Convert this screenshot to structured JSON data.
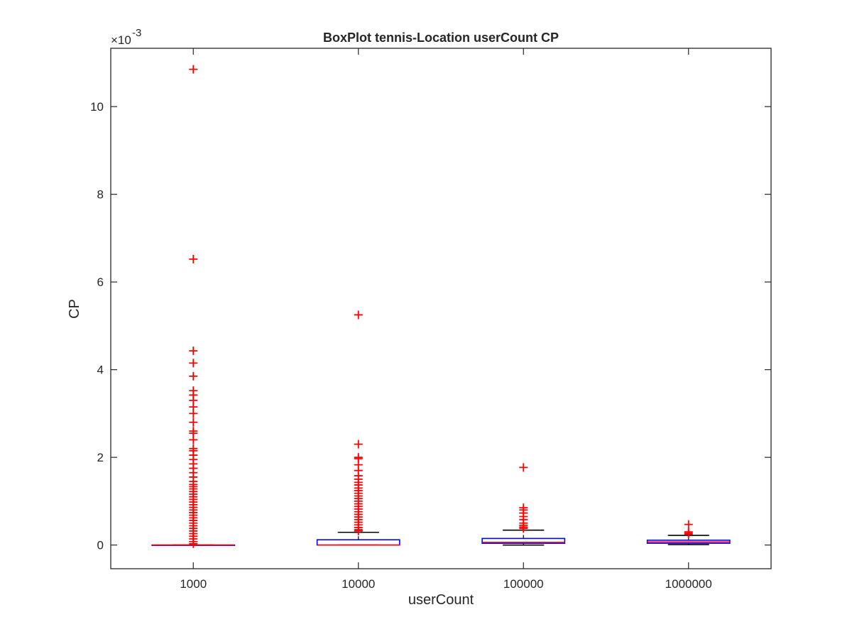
{
  "chart_data": {
    "type": "box",
    "title": "BoxPlot tennis-Location userCount CP",
    "xlabel": "userCount",
    "ylabel": "CP",
    "y_multiplier_base": "×10",
    "y_multiplier_exponent": "-3",
    "categories": [
      "1000",
      "10000",
      "100000",
      "1000000"
    ],
    "ylim": [
      -0.54,
      11.33
    ],
    "yticks": [
      0,
      2,
      4,
      6,
      8,
      10
    ],
    "ytick_labels": [
      "0",
      "2",
      "4",
      "6",
      "8",
      "10"
    ],
    "grid": false,
    "colors": {
      "box": "#0000ff",
      "median": "#ff0000",
      "whisker": "#000000",
      "outlier": "#ff0000",
      "axis": "#262626"
    },
    "boxes": [
      {
        "category": "1000",
        "q1": 0.0,
        "median": 0.0,
        "q3": 0.0,
        "whisker_low": 0.0,
        "whisker_high": 0.0,
        "outliers": [
          10.85,
          6.52,
          4.43,
          4.15,
          3.85,
          3.52,
          3.42,
          3.3,
          3.15,
          3.0,
          2.8,
          2.6,
          2.55,
          2.4,
          2.2,
          2.15,
          2.05,
          1.95,
          1.85,
          1.75,
          1.65,
          1.55,
          1.45,
          1.38,
          1.33,
          1.28,
          1.22,
          1.16,
          1.1,
          1.04,
          0.98,
          0.92,
          0.86,
          0.8,
          0.74,
          0.68,
          0.62,
          0.56,
          0.5,
          0.44,
          0.38,
          0.32,
          0.26,
          0.2,
          0.14,
          0.08,
          0.03
        ]
      },
      {
        "category": "10000",
        "q1": 0.0,
        "median": 0.0,
        "q3": 0.12,
        "whisker_low": 0.0,
        "whisker_high": 0.29,
        "outliers": [
          5.25,
          2.3,
          2.0,
          1.97,
          1.83,
          1.7,
          1.58,
          1.5,
          1.43,
          1.37,
          1.3,
          1.24,
          1.18,
          1.12,
          1.06,
          1.0,
          0.94,
          0.88,
          0.82,
          0.76,
          0.7,
          0.64,
          0.58,
          0.52,
          0.46,
          0.4,
          0.35,
          0.32
        ]
      },
      {
        "category": "100000",
        "q1": 0.04,
        "median": 0.06,
        "q3": 0.15,
        "whisker_low": 0.0,
        "whisker_high": 0.34,
        "outliers": [
          1.77,
          0.85,
          0.8,
          0.73,
          0.65,
          0.58,
          0.5,
          0.45,
          0.41,
          0.38
        ]
      },
      {
        "category": "1000000",
        "q1": 0.04,
        "median": 0.07,
        "q3": 0.11,
        "whisker_low": 0.01,
        "whisker_high": 0.22,
        "outliers": [
          0.47,
          0.3,
          0.27,
          0.25
        ]
      }
    ]
  }
}
